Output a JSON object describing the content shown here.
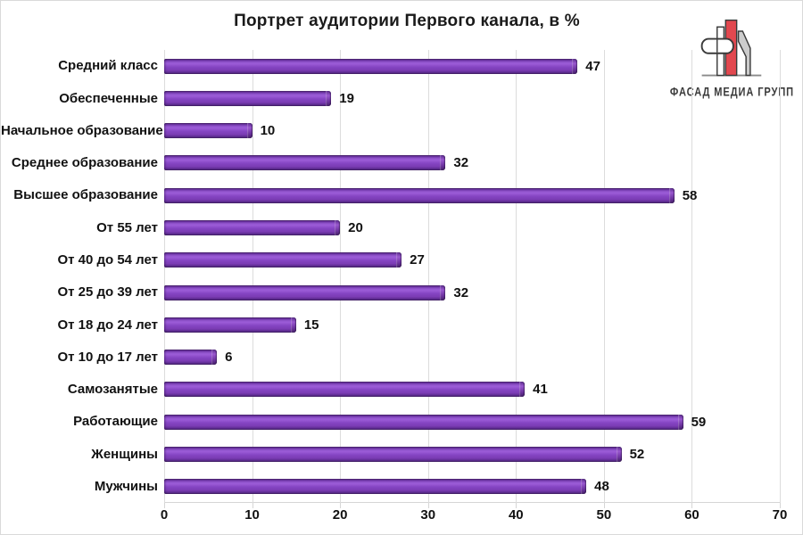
{
  "title": "Портрет аудитории Первого канала, в %",
  "logo": {
    "text": "ФАСАД МЕДИА ГРУПП",
    "red": "#e2484f",
    "outline": "#3a3a3a",
    "gray": "#cccccc"
  },
  "chart_data": {
    "type": "bar",
    "orientation": "horizontal",
    "title": "Портрет аудитории Первого канала, в %",
    "categories": [
      "Средний класс",
      "Обеспеченные",
      "Начальное образование",
      "Среднее образование",
      "Высшее образование",
      "От 55 лет",
      "От 40 до 54 лет",
      "От 25 до 39 лет",
      "От 18 до 24 лет",
      "От 10 до 17 лет",
      "Самозанятые",
      "Работающие",
      "Женщины",
      "Мужчины"
    ],
    "values": [
      47,
      19,
      10,
      32,
      58,
      20,
      27,
      32,
      15,
      6,
      41,
      59,
      52,
      48
    ],
    "xticks": [
      0,
      10,
      20,
      30,
      40,
      50,
      60,
      70
    ],
    "xlim": [
      0,
      70
    ],
    "xlabel": "",
    "ylabel": "",
    "bar_color": "#7d3cb5",
    "grid": true,
    "legend": false,
    "value_labels": true
  }
}
